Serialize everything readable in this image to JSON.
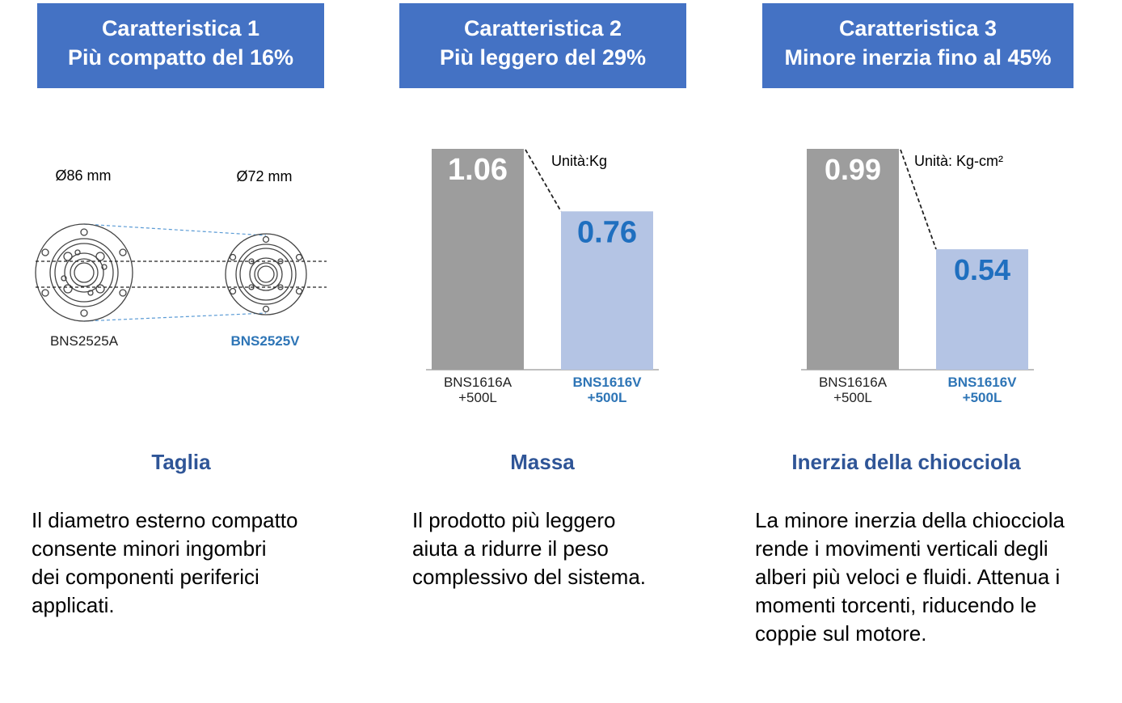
{
  "features": [
    {
      "title_line1": "Caratteristica 1",
      "title_line2": "Più compatto del 16%",
      "section": "Taglia",
      "desc_lines": [
        "Il diametro esterno compatto",
        "consente minori ingombri",
        "dei componenti periferici",
        "applicati."
      ]
    },
    {
      "title_line1": "Caratteristica 2",
      "title_line2": "Più leggero del 29%",
      "section": "Massa",
      "desc_lines": [
        "Il prodotto più leggero",
        "aiuta a ridurre il peso",
        "complessivo del sistema."
      ]
    },
    {
      "title_line1": "Caratteristica 3",
      "title_line2": "Minore inerzia fino al 45%",
      "section": "Inerzia della chiocciola",
      "desc_lines": [
        "La minore inerzia della chiocciola",
        "rende i movimenti verticali degli",
        "alberi più veloci e fluidi. Attenua i",
        "momenti torcenti, riducendo le",
        "coppie sul motore."
      ]
    }
  ],
  "size_diagram": {
    "left_diameter": "Ø86 mm",
    "right_diameter": "Ø72 mm",
    "left_model": "BNS2525A",
    "right_model": "BNS2525V"
  },
  "colors": {
    "header": "#4472c4",
    "section_title": "#2f5597",
    "old_bar": "#9d9d9d",
    "new_bar": "#b4c4e4",
    "new_value": "#1f6fbf",
    "new_label": "#2e75b6"
  },
  "chart_data": [
    {
      "type": "bar",
      "unit_label": "Unità:Kg",
      "categories": [
        [
          "BNS1616A",
          "+500L"
        ],
        [
          "BNS1616V",
          "+500L"
        ]
      ],
      "values": [
        1.06,
        0.76
      ],
      "value_labels": [
        "1.06",
        "0.76"
      ],
      "ylim": [
        0,
        1.06
      ]
    },
    {
      "type": "bar",
      "unit_label": "Unità: Kg-cm²",
      "categories": [
        [
          "BNS1616A",
          "+500L"
        ],
        [
          "BNS1616V",
          "+500L"
        ]
      ],
      "values": [
        0.99,
        0.54
      ],
      "value_labels": [
        "0.99",
        "0.54"
      ],
      "ylim": [
        0,
        0.99
      ]
    }
  ]
}
